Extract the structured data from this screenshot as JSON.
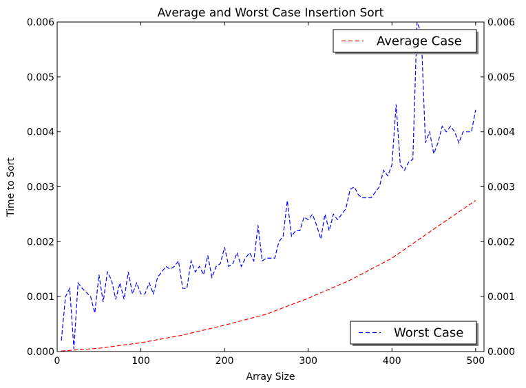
{
  "chart_data": {
    "type": "line",
    "title": "Average and Worst Case Insertion Sort",
    "xlabel": "Array Size",
    "ylabel": "Time to Sort",
    "xlim": [
      0,
      510
    ],
    "ylim": [
      0,
      0.006
    ],
    "xticks": [
      0,
      100,
      200,
      300,
      400,
      500
    ],
    "xtick_labels": [
      "0",
      "100",
      "200",
      "300",
      "400",
      "500"
    ],
    "yticks": [
      0,
      0.001,
      0.002,
      0.003,
      0.004,
      0.005,
      0.006
    ],
    "ytick_labels": [
      "0.000",
      "0.001",
      "0.002",
      "0.003",
      "0.004",
      "0.005",
      "0.006"
    ],
    "grid": false,
    "legends": [
      {
        "placement": "top-right",
        "series": "Average Case"
      },
      {
        "placement": "bottom-right",
        "series": "Worst Case"
      }
    ],
    "series": [
      {
        "name": "Average Case",
        "color": "#ff0000",
        "dash": "dashed",
        "x": [
          5,
          50,
          100,
          150,
          200,
          250,
          300,
          350,
          400,
          450,
          500
        ],
        "y": [
          1e-05,
          6e-05,
          0.00016,
          0.0003,
          0.00048,
          0.00068,
          0.00097,
          0.0013,
          0.0017,
          0.00223,
          0.00275
        ]
      },
      {
        "name": "Worst Case",
        "color": "#0000ff",
        "dash": "dashed",
        "x": [
          5,
          10,
          15,
          20,
          25,
          30,
          40,
          45,
          50,
          55,
          60,
          65,
          70,
          75,
          80,
          85,
          90,
          95,
          100,
          105,
          110,
          115,
          120,
          125,
          130,
          135,
          140,
          145,
          150,
          155,
          160,
          165,
          170,
          175,
          180,
          185,
          190,
          195,
          200,
          205,
          210,
          215,
          220,
          225,
          230,
          235,
          240,
          245,
          250,
          255,
          260,
          265,
          270,
          275,
          280,
          285,
          290,
          295,
          300,
          305,
          310,
          315,
          320,
          325,
          330,
          335,
          340,
          345,
          350,
          355,
          360,
          365,
          370,
          375,
          380,
          385,
          390,
          395,
          400,
          405,
          410,
          415,
          420,
          425,
          430,
          435,
          440,
          445,
          450,
          455,
          460,
          465,
          470,
          475,
          480,
          485,
          490,
          495,
          500
        ],
        "y": [
          0.0002,
          0.001,
          0.00115,
          5e-05,
          0.00125,
          0.00115,
          0.001,
          0.0007,
          0.0014,
          0.0009,
          0.00145,
          0.0013,
          0.00095,
          0.00125,
          0.00095,
          0.00145,
          0.00105,
          0.00125,
          0.00105,
          0.00105,
          0.00125,
          0.00105,
          0.00135,
          0.00145,
          0.00155,
          0.0015,
          0.00155,
          0.00165,
          0.00115,
          0.00115,
          0.00165,
          0.00145,
          0.00155,
          0.0014,
          0.00175,
          0.00135,
          0.00155,
          0.0016,
          0.0019,
          0.00155,
          0.0016,
          0.0018,
          0.00155,
          0.0017,
          0.0018,
          0.00165,
          0.0023,
          0.00165,
          0.0017,
          0.0017,
          0.0017,
          0.002,
          0.0021,
          0.00275,
          0.0021,
          0.0022,
          0.0022,
          0.00245,
          0.0024,
          0.0025,
          0.0023,
          0.00205,
          0.0025,
          0.0022,
          0.0025,
          0.0024,
          0.0025,
          0.0026,
          0.00295,
          0.003,
          0.00285,
          0.0028,
          0.0028,
          0.0028,
          0.0029,
          0.003,
          0.0033,
          0.0032,
          0.0034,
          0.0045,
          0.0034,
          0.0033,
          0.00345,
          0.0035,
          0.006,
          0.0058,
          0.0038,
          0.004,
          0.0036,
          0.0038,
          0.0041,
          0.004,
          0.0041,
          0.004,
          0.0038,
          0.004,
          0.004,
          0.004,
          0.0044
        ]
      }
    ]
  }
}
